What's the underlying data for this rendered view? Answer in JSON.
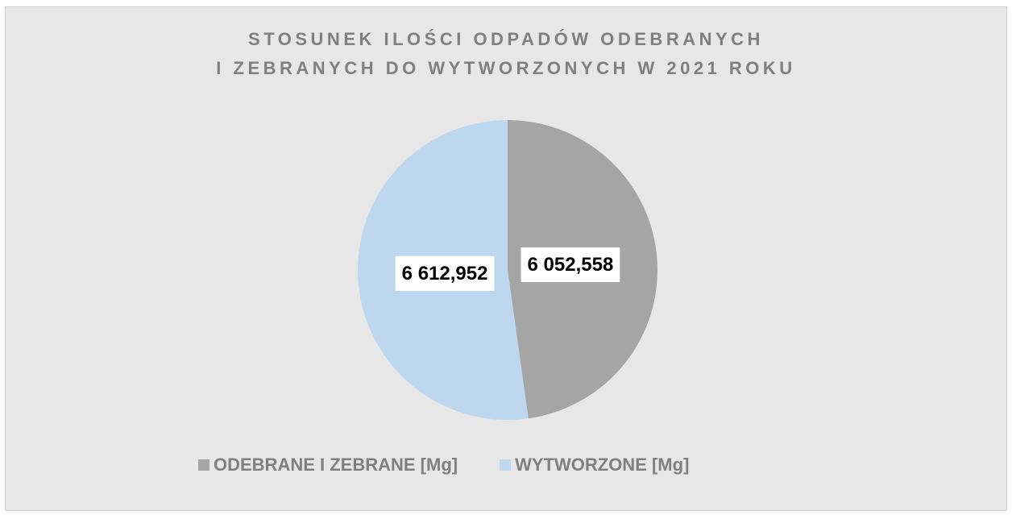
{
  "chart_data": {
    "type": "pie",
    "title": [
      "STOSUNEK ILOŚCI ODPADÓW ODEBRANYCH",
      "I ZEBRANYCH DO WYTWORZONYCH W 2021 ROKU"
    ],
    "categories": [
      "ODEBRANE I ZEBRANE [Mg]",
      "WYTWORZONE [Mg]"
    ],
    "values": [
      6052.558,
      6612.952
    ],
    "value_labels": [
      "6 052,558",
      "6 612,952"
    ],
    "colors": [
      "#a5a5a5",
      "#bdd7ee"
    ],
    "legend": "bottom"
  }
}
